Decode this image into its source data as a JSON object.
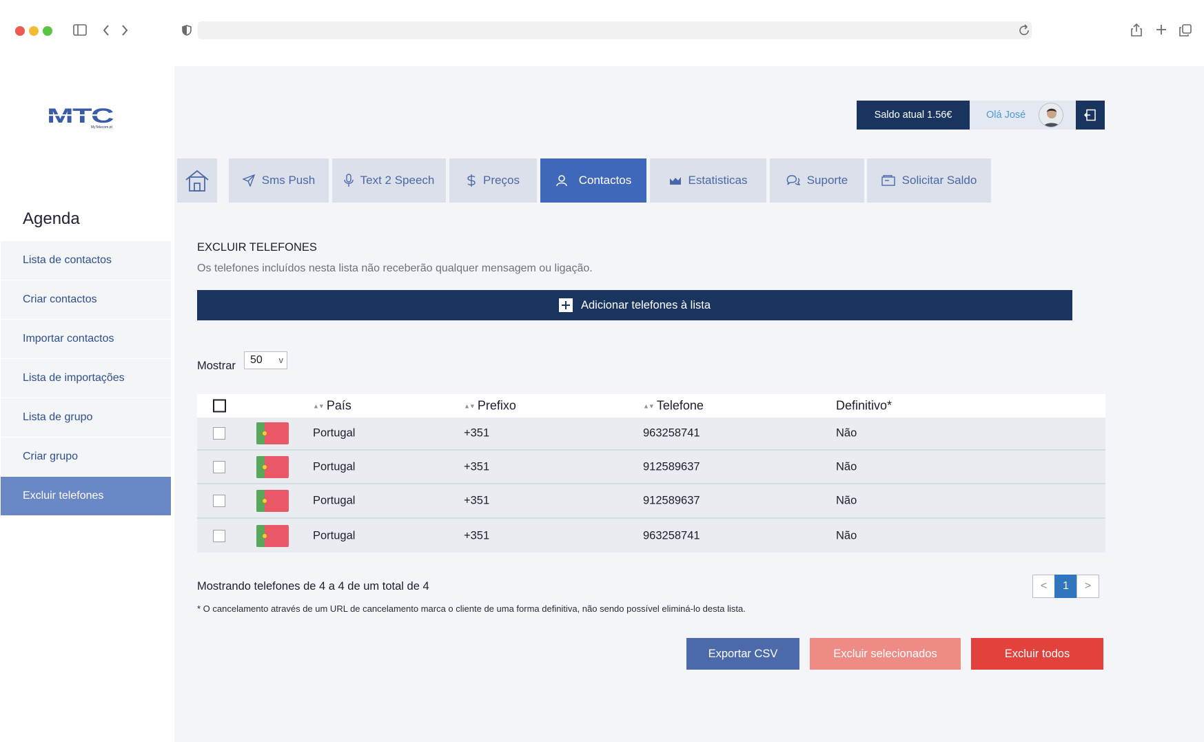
{
  "browser": {
    "url": ""
  },
  "brand": {
    "logo_text": "MTC",
    "logo_sub": "MyTelecom.pt"
  },
  "sidebar": {
    "title": "Agenda",
    "items": [
      {
        "label": "Lista de contactos"
      },
      {
        "label": "Criar contactos"
      },
      {
        "label": "Importar contactos"
      },
      {
        "label": "Lista de importações"
      },
      {
        "label": "Lista de grupo"
      },
      {
        "label": "Criar grupo"
      },
      {
        "label": "Excluir telefones",
        "active": true
      }
    ]
  },
  "header": {
    "balance": "Saldo atual 1.56€",
    "greeting": "Olá José"
  },
  "nav": {
    "items": [
      {
        "label": "",
        "icon": "home-icon"
      },
      {
        "label": "Sms Push",
        "icon": "send-icon"
      },
      {
        "label": "Text 2 Speech",
        "icon": "microphone-icon"
      },
      {
        "label": "Preços",
        "icon": "dollar-icon"
      },
      {
        "label": "Contactos",
        "icon": "user-icon",
        "active": true
      },
      {
        "label": "Estatisticas",
        "icon": "chart-icon"
      },
      {
        "label": "Suporte",
        "icon": "chat-icon"
      },
      {
        "label": "Solicitar Saldo",
        "icon": "wallet-icon"
      }
    ]
  },
  "page": {
    "title": "EXCLUIR TELEFONES",
    "description": "Os telefones incluídos nesta lista não receberão qualquer mensagem ou ligação.",
    "add_button": "Adicionar telefones à lista",
    "show_label": "Mostrar",
    "show_value": "50",
    "show_caret": "v"
  },
  "table": {
    "columns": [
      "País",
      "Prefixo",
      "Telefone",
      "Definitivo*"
    ],
    "rows": [
      {
        "country": "Portugal",
        "prefix": "+351",
        "phone": "963258741",
        "definitive": "Não"
      },
      {
        "country": "Portugal",
        "prefix": "+351",
        "phone": "912589637",
        "definitive": "Não"
      },
      {
        "country": "Portugal",
        "prefix": "+351",
        "phone": "912589637",
        "definitive": "Não"
      },
      {
        "country": "Portugal",
        "prefix": "+351",
        "phone": "963258741",
        "definitive": "Não"
      }
    ],
    "summary": "Mostrando telefones de 4 a 4 de um total de 4",
    "footnote": "* O cancelamento através de um URL de cancelamento marca o cliente de uma forma definitiva, não sendo possível eliminá-lo desta lista."
  },
  "pagination": {
    "prev": "<",
    "current": "1",
    "next": ">"
  },
  "actions": {
    "export_csv": "Exportar CSV",
    "delete_selected": "Excluir selecionados",
    "delete_all": "Excluir todos"
  },
  "colors": {
    "navy": "#1a3460",
    "accent_blue": "#4068ba",
    "sidebar_active": "#6a87c6",
    "danger": "#e3413b",
    "danger_light": "#ef8b85"
  }
}
